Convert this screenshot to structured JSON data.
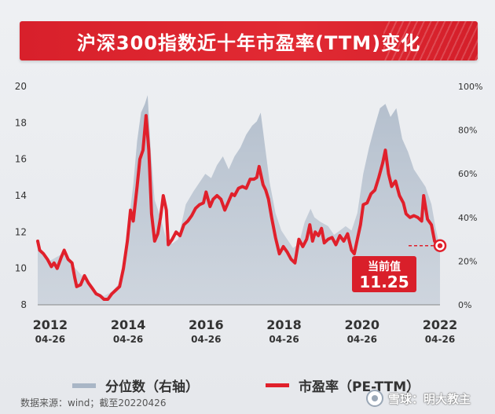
{
  "title": "沪深300指数近十年市盈率(TTM)变化",
  "source": "数据来源：wind；截至20220426",
  "watermark": "雪球：明大教主",
  "legend": {
    "area_label": "分位数（右轴）",
    "line_label": "市盈率（PE-TTM）"
  },
  "callout": {
    "label": "当前值",
    "value": "11.25"
  },
  "colors": {
    "title_bg": "#dc232d",
    "line": "#e0202b",
    "area": "#a9b6c6",
    "callout_bg": "#d91f2a"
  },
  "chart_data": {
    "type": "line",
    "x_ticks": [
      {
        "year": "2012",
        "date": "04-26",
        "x": 2012.32
      },
      {
        "year": "2014",
        "date": "04-26",
        "x": 2014.32
      },
      {
        "year": "2016",
        "date": "04-26",
        "x": 2016.32
      },
      {
        "year": "2018",
        "date": "04-26",
        "x": 2018.32
      },
      {
        "year": "2020",
        "date": "04-26",
        "x": 2020.32
      },
      {
        "year": "2022",
        "date": "04-26",
        "x": 2022.32
      }
    ],
    "xlim": [
      2012.0,
      2022.32
    ],
    "y_left_ticks": [
      "8",
      "10",
      "12",
      "14",
      "16",
      "18",
      "20"
    ],
    "ylim_left": [
      8,
      20
    ],
    "y_right_ticks": [
      "0%",
      "20%",
      "40%",
      "60%",
      "80%",
      "100%"
    ],
    "ylim_right": [
      0,
      100
    ],
    "series": [
      {
        "axis": "left",
        "values": [
          [
            2012.0,
            11.5
          ],
          [
            2012.05,
            11.0
          ],
          [
            2012.15,
            10.8
          ],
          [
            2012.25,
            10.5
          ],
          [
            2012.35,
            10.1
          ],
          [
            2012.42,
            10.3
          ],
          [
            2012.5,
            10.0
          ],
          [
            2012.6,
            10.6
          ],
          [
            2012.68,
            11.0
          ],
          [
            2012.78,
            10.5
          ],
          [
            2012.88,
            10.3
          ],
          [
            2012.95,
            9.5
          ],
          [
            2013.0,
            9.0
          ],
          [
            2013.1,
            9.1
          ],
          [
            2013.2,
            9.6
          ],
          [
            2013.3,
            9.2
          ],
          [
            2013.4,
            8.9
          ],
          [
            2013.5,
            8.6
          ],
          [
            2013.6,
            8.5
          ],
          [
            2013.7,
            8.3
          ],
          [
            2013.8,
            8.3
          ],
          [
            2013.9,
            8.6
          ],
          [
            2014.0,
            8.8
          ],
          [
            2014.1,
            9.0
          ],
          [
            2014.2,
            10.0
          ],
          [
            2014.3,
            11.5
          ],
          [
            2014.38,
            13.2
          ],
          [
            2014.45,
            12.6
          ],
          [
            2014.55,
            14.5
          ],
          [
            2014.62,
            16.0
          ],
          [
            2014.7,
            16.5
          ],
          [
            2014.78,
            18.4
          ],
          [
            2014.85,
            16.5
          ],
          [
            2014.92,
            13.0
          ],
          [
            2015.0,
            11.5
          ],
          [
            2015.08,
            11.9
          ],
          [
            2015.15,
            12.8
          ],
          [
            2015.22,
            14.0
          ],
          [
            2015.3,
            13.2
          ],
          [
            2015.35,
            11.3
          ],
          [
            2015.45,
            11.6
          ],
          [
            2015.55,
            12.0
          ],
          [
            2015.65,
            11.8
          ],
          [
            2015.75,
            12.4
          ],
          [
            2015.85,
            12.6
          ],
          [
            2015.95,
            12.9
          ],
          [
            2016.05,
            13.3
          ],
          [
            2016.15,
            13.5
          ],
          [
            2016.25,
            13.6
          ],
          [
            2016.32,
            14.2
          ],
          [
            2016.42,
            13.4
          ],
          [
            2016.5,
            13.8
          ],
          [
            2016.6,
            14.0
          ],
          [
            2016.7,
            13.8
          ],
          [
            2016.8,
            13.2
          ],
          [
            2016.9,
            13.7
          ],
          [
            2016.98,
            14.1
          ],
          [
            2017.05,
            14.0
          ],
          [
            2017.15,
            14.4
          ],
          [
            2017.25,
            14.5
          ],
          [
            2017.35,
            14.4
          ],
          [
            2017.45,
            14.9
          ],
          [
            2017.55,
            14.9
          ],
          [
            2017.62,
            15.0
          ],
          [
            2017.68,
            15.6
          ],
          [
            2017.78,
            14.6
          ],
          [
            2017.85,
            14.3
          ],
          [
            2017.92,
            13.8
          ],
          [
            2018.0,
            12.8
          ],
          [
            2018.1,
            11.7
          ],
          [
            2018.2,
            10.8
          ],
          [
            2018.3,
            11.2
          ],
          [
            2018.4,
            10.9
          ],
          [
            2018.5,
            10.5
          ],
          [
            2018.6,
            10.3
          ],
          [
            2018.7,
            11.6
          ],
          [
            2018.8,
            11.2
          ],
          [
            2018.9,
            11.6
          ],
          [
            2018.98,
            12.4
          ],
          [
            2019.05,
            11.5
          ],
          [
            2019.12,
            12.0
          ],
          [
            2019.2,
            11.8
          ],
          [
            2019.28,
            12.2
          ],
          [
            2019.35,
            11.4
          ],
          [
            2019.45,
            11.6
          ],
          [
            2019.55,
            11.7
          ],
          [
            2019.65,
            11.3
          ],
          [
            2019.75,
            11.8
          ],
          [
            2019.85,
            11.5
          ],
          [
            2019.95,
            11.9
          ],
          [
            2020.05,
            11.0
          ],
          [
            2020.12,
            10.8
          ],
          [
            2020.2,
            11.6
          ],
          [
            2020.28,
            12.4
          ],
          [
            2020.35,
            13.5
          ],
          [
            2020.45,
            13.6
          ],
          [
            2020.55,
            14.1
          ],
          [
            2020.65,
            14.3
          ],
          [
            2020.75,
            15.0
          ],
          [
            2020.85,
            15.8
          ],
          [
            2020.92,
            16.5
          ],
          [
            2021.0,
            15.2
          ],
          [
            2021.08,
            14.5
          ],
          [
            2021.18,
            14.8
          ],
          [
            2021.28,
            14.0
          ],
          [
            2021.38,
            13.6
          ],
          [
            2021.45,
            13.0
          ],
          [
            2021.55,
            12.8
          ],
          [
            2021.65,
            12.9
          ],
          [
            2021.75,
            12.8
          ],
          [
            2021.85,
            12.6
          ],
          [
            2021.9,
            14.0
          ],
          [
            2022.0,
            12.7
          ],
          [
            2022.1,
            12.4
          ],
          [
            2022.18,
            11.5
          ],
          [
            2022.25,
            11.25
          ],
          [
            2022.32,
            11.25
          ]
        ]
      },
      {
        "axis": "right",
        "values": [
          [
            2012.0,
            28
          ],
          [
            2012.1,
            24
          ],
          [
            2012.3,
            20
          ],
          [
            2012.5,
            22
          ],
          [
            2012.7,
            24
          ],
          [
            2012.9,
            18
          ],
          [
            2013.1,
            14
          ],
          [
            2013.3,
            10
          ],
          [
            2013.5,
            6
          ],
          [
            2013.7,
            4
          ],
          [
            2013.9,
            6
          ],
          [
            2014.1,
            10
          ],
          [
            2014.25,
            22
          ],
          [
            2014.35,
            40
          ],
          [
            2014.45,
            55
          ],
          [
            2014.55,
            75
          ],
          [
            2014.65,
            88
          ],
          [
            2014.75,
            92
          ],
          [
            2014.82,
            96
          ],
          [
            2014.9,
            70
          ],
          [
            2015.0,
            48
          ],
          [
            2015.15,
            40
          ],
          [
            2015.3,
            30
          ],
          [
            2015.45,
            28
          ],
          [
            2015.6,
            30
          ],
          [
            2015.8,
            46
          ],
          [
            2016.0,
            52
          ],
          [
            2016.15,
            56
          ],
          [
            2016.3,
            60
          ],
          [
            2016.45,
            58
          ],
          [
            2016.6,
            64
          ],
          [
            2016.75,
            68
          ],
          [
            2016.9,
            62
          ],
          [
            2017.05,
            68
          ],
          [
            2017.2,
            72
          ],
          [
            2017.35,
            78
          ],
          [
            2017.5,
            82
          ],
          [
            2017.62,
            84
          ],
          [
            2017.72,
            88
          ],
          [
            2017.85,
            70
          ],
          [
            2017.95,
            56
          ],
          [
            2018.1,
            42
          ],
          [
            2018.25,
            34
          ],
          [
            2018.4,
            30
          ],
          [
            2018.55,
            26
          ],
          [
            2018.7,
            28
          ],
          [
            2018.85,
            38
          ],
          [
            2019.0,
            44
          ],
          [
            2019.1,
            40
          ],
          [
            2019.25,
            38
          ],
          [
            2019.45,
            36
          ],
          [
            2019.6,
            32
          ],
          [
            2019.75,
            34
          ],
          [
            2019.9,
            36
          ],
          [
            2020.05,
            34
          ],
          [
            2020.2,
            42
          ],
          [
            2020.35,
            60
          ],
          [
            2020.5,
            72
          ],
          [
            2020.65,
            82
          ],
          [
            2020.78,
            90
          ],
          [
            2020.92,
            92
          ],
          [
            2021.05,
            86
          ],
          [
            2021.2,
            90
          ],
          [
            2021.35,
            76
          ],
          [
            2021.5,
            70
          ],
          [
            2021.65,
            62
          ],
          [
            2021.8,
            58
          ],
          [
            2021.95,
            54
          ],
          [
            2022.1,
            46
          ],
          [
            2022.2,
            36
          ],
          [
            2022.32,
            26
          ]
        ]
      }
    ]
  }
}
